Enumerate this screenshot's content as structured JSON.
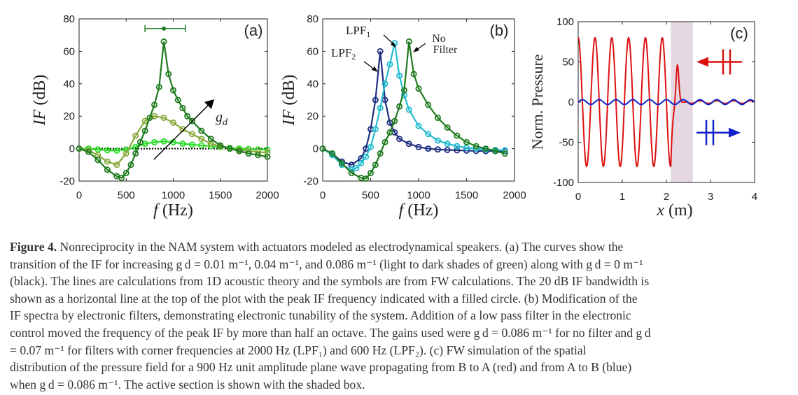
{
  "chart_data": [
    {
      "type": "line",
      "panel_label": "(a)",
      "xlabel": "f (Hz)",
      "ylabel": "IF (dB)",
      "xlim": [
        0,
        2000
      ],
      "ylim": [
        -20,
        80
      ],
      "xticks": [
        0,
        500,
        1000,
        1500,
        2000
      ],
      "yticks": [
        -20,
        0,
        20,
        40,
        60,
        80
      ],
      "annotation": "g_d",
      "bandwidth_marker": {
        "x_start": 700,
        "x_end": 1130,
        "y": 74,
        "peak_x": 900
      },
      "series": [
        {
          "color": "#000000",
          "x": [
            0,
            2000
          ],
          "y": [
            0,
            0
          ]
        },
        {
          "color": "#22dd22",
          "x": [
            0,
            100,
            200,
            300,
            400,
            500,
            600,
            700,
            800,
            900,
            1000,
            1100,
            1200,
            1300,
            1400,
            1500,
            1600,
            1700,
            1800,
            1900,
            2000
          ],
          "y": [
            0,
            0,
            -0.5,
            -1,
            -1.2,
            -0.5,
            1,
            3,
            4,
            4.5,
            4,
            3,
            2.5,
            2,
            1.5,
            1,
            0.5,
            0,
            -0.3,
            -0.5,
            -0.6
          ]
        },
        {
          "color": "#8aaa3c",
          "x": [
            0,
            100,
            200,
            300,
            400,
            500,
            600,
            700,
            800,
            900,
            1000,
            1100,
            1200,
            1300,
            1400,
            1500,
            1600,
            1700,
            1800,
            1900,
            2000
          ],
          "y": [
            0,
            -1,
            -4,
            -8,
            -10,
            -3,
            8,
            17,
            20,
            19,
            16,
            12,
            9,
            6,
            3,
            1.5,
            0,
            -0.8,
            -1.5,
            -2,
            -2.5
          ]
        },
        {
          "color": "#1f7a1f",
          "x": [
            0,
            100,
            200,
            300,
            400,
            450,
            500,
            550,
            600,
            650,
            700,
            750,
            800,
            850,
            900,
            950,
            1000,
            1050,
            1100,
            1150,
            1200,
            1300,
            1400,
            1500,
            1600,
            1700,
            1800,
            1900,
            2000
          ],
          "y": [
            0,
            -2,
            -7,
            -13,
            -17,
            -18,
            -15,
            -10,
            -3,
            4,
            11,
            19,
            27,
            38,
            66,
            46,
            36,
            30,
            25,
            20,
            17,
            11,
            6,
            2,
            0,
            -1.5,
            -3,
            -4,
            -5
          ]
        }
      ]
    },
    {
      "type": "line",
      "panel_label": "(b)",
      "xlabel": "f (Hz)",
      "ylabel": "IF (dB)",
      "xlim": [
        0,
        2000
      ],
      "ylim": [
        -20,
        80
      ],
      "xticks": [
        0,
        500,
        1000,
        1500,
        2000
      ],
      "yticks": [
        -20,
        0,
        20,
        40,
        60,
        80
      ],
      "annotations": [
        {
          "text": "LPF",
          "sub": "1",
          "series_color": "#22bcd0"
        },
        {
          "text": "LPF",
          "sub": "2",
          "series_color": "#1f2f80"
        },
        {
          "text": "No",
          "series_color": "#1f7a1f"
        },
        {
          "text": "Filter",
          "series_color": "#1f7a1f"
        }
      ],
      "series": [
        {
          "color": "#1f2f80",
          "x": [
            0,
            100,
            200,
            300,
            400,
            450,
            500,
            550,
            600,
            650,
            700,
            750,
            800,
            900,
            1000,
            1100,
            1200,
            1300,
            1400,
            1500,
            1600,
            1700,
            1800,
            1900
          ],
          "y": [
            0,
            -3,
            -8,
            -10,
            -6,
            0,
            12,
            30,
            60,
            30,
            16,
            10,
            6,
            3,
            1,
            0,
            -0.5,
            -0.8,
            -1,
            -1.2,
            -1.4,
            -1.5,
            -1.5,
            -1.5
          ]
        },
        {
          "color": "#22bcd0",
          "x": [
            0,
            100,
            200,
            300,
            350,
            400,
            450,
            500,
            550,
            600,
            650,
            700,
            750,
            800,
            850,
            900,
            1000,
            1100,
            1200,
            1300,
            1400,
            1500,
            1600,
            1700,
            1800,
            1900
          ],
          "y": [
            0,
            -4,
            -10,
            -13,
            -12,
            -9,
            -5,
            1,
            12,
            25,
            40,
            52,
            65,
            45,
            33,
            24,
            14,
            9,
            5,
            3,
            1.5,
            0.5,
            0,
            -0.5,
            -0.8,
            -1
          ]
        },
        {
          "color": "#1f7a1f",
          "x": [
            0,
            100,
            200,
            300,
            400,
            450,
            500,
            550,
            600,
            650,
            700,
            750,
            800,
            850,
            900,
            950,
            1000,
            1100,
            1200,
            1300,
            1400,
            1500,
            1600,
            1700,
            1800,
            1900
          ],
          "y": [
            0,
            -3,
            -9,
            -15,
            -18,
            -18.5,
            -15,
            -10,
            -3,
            4,
            10,
            17,
            26,
            36,
            66,
            46,
            37,
            27,
            19,
            13,
            8,
            4,
            1.5,
            0,
            -1.5,
            -3
          ]
        }
      ]
    },
    {
      "type": "line",
      "panel_label": "(c)",
      "xlabel": "x (m)",
      "ylabel": "Norm. Pressure",
      "xlim": [
        0,
        4
      ],
      "ylim": [
        -100,
        100
      ],
      "xticks": [
        0,
        1,
        2,
        3,
        4
      ],
      "yticks": [
        -100,
        -50,
        0,
        50,
        100
      ],
      "shaded_region": {
        "x_start": 2.1,
        "x_end": 2.6
      },
      "series": [
        {
          "color": "#dd1111",
          "kind": "standing_wave",
          "amplitude": 80,
          "wavelength_m": 0.381,
          "x_end": 2.1,
          "decay_bump": {
            "x": 2.25,
            "y": 48
          }
        },
        {
          "color": "#1122cc",
          "kind": "traveling_wave",
          "amplitude": 3,
          "wavelength_m": 0.381,
          "x_end": 4.0
        }
      ],
      "arrows": [
        {
          "direction": "left",
          "color": "#dd1111"
        },
        {
          "direction": "right",
          "color": "#1122cc"
        }
      ]
    }
  ],
  "caption": {
    "figure_label": "Figure 4.",
    "lines": [
      "Nonreciprocity in the NAM system with actuators modeled as electrodynamical speakers. (a) The curves show the",
      "transition of the IF for increasing g d = 0.01 m⁻¹, 0.04 m⁻¹, and 0.086 m⁻¹ (light to dark shades of green) along with g d = 0 m⁻¹",
      "(black). The lines are calculations from 1D acoustic theory and the symbols are from FW calculations. The 20 dB IF bandwidth is",
      "shown as a horizontal line at the top of the plot with the peak IF frequency indicated with a filled circle. (b) Modification of the",
      "IF spectra by electronic filters, demonstrating electronic tunability of the system. Addition of a low pass filter in the electronic",
      "control moved the frequency of the peak IF by more than half an octave. The gains used were g d = 0.086 m⁻¹ for no filter and g d",
      "= 0.07 m⁻¹ for filters with corner frequencies at 2000 Hz (LPF₁) and 600 Hz (LPF₂). (c) FW simulation of the spatial",
      "distribution of the pressure field for a 900 Hz unit amplitude plane wave propagating from B to A (red) and from A to B (blue)",
      "when g d = 0.086 m⁻¹. The active section is shown with the shaded box."
    ]
  }
}
